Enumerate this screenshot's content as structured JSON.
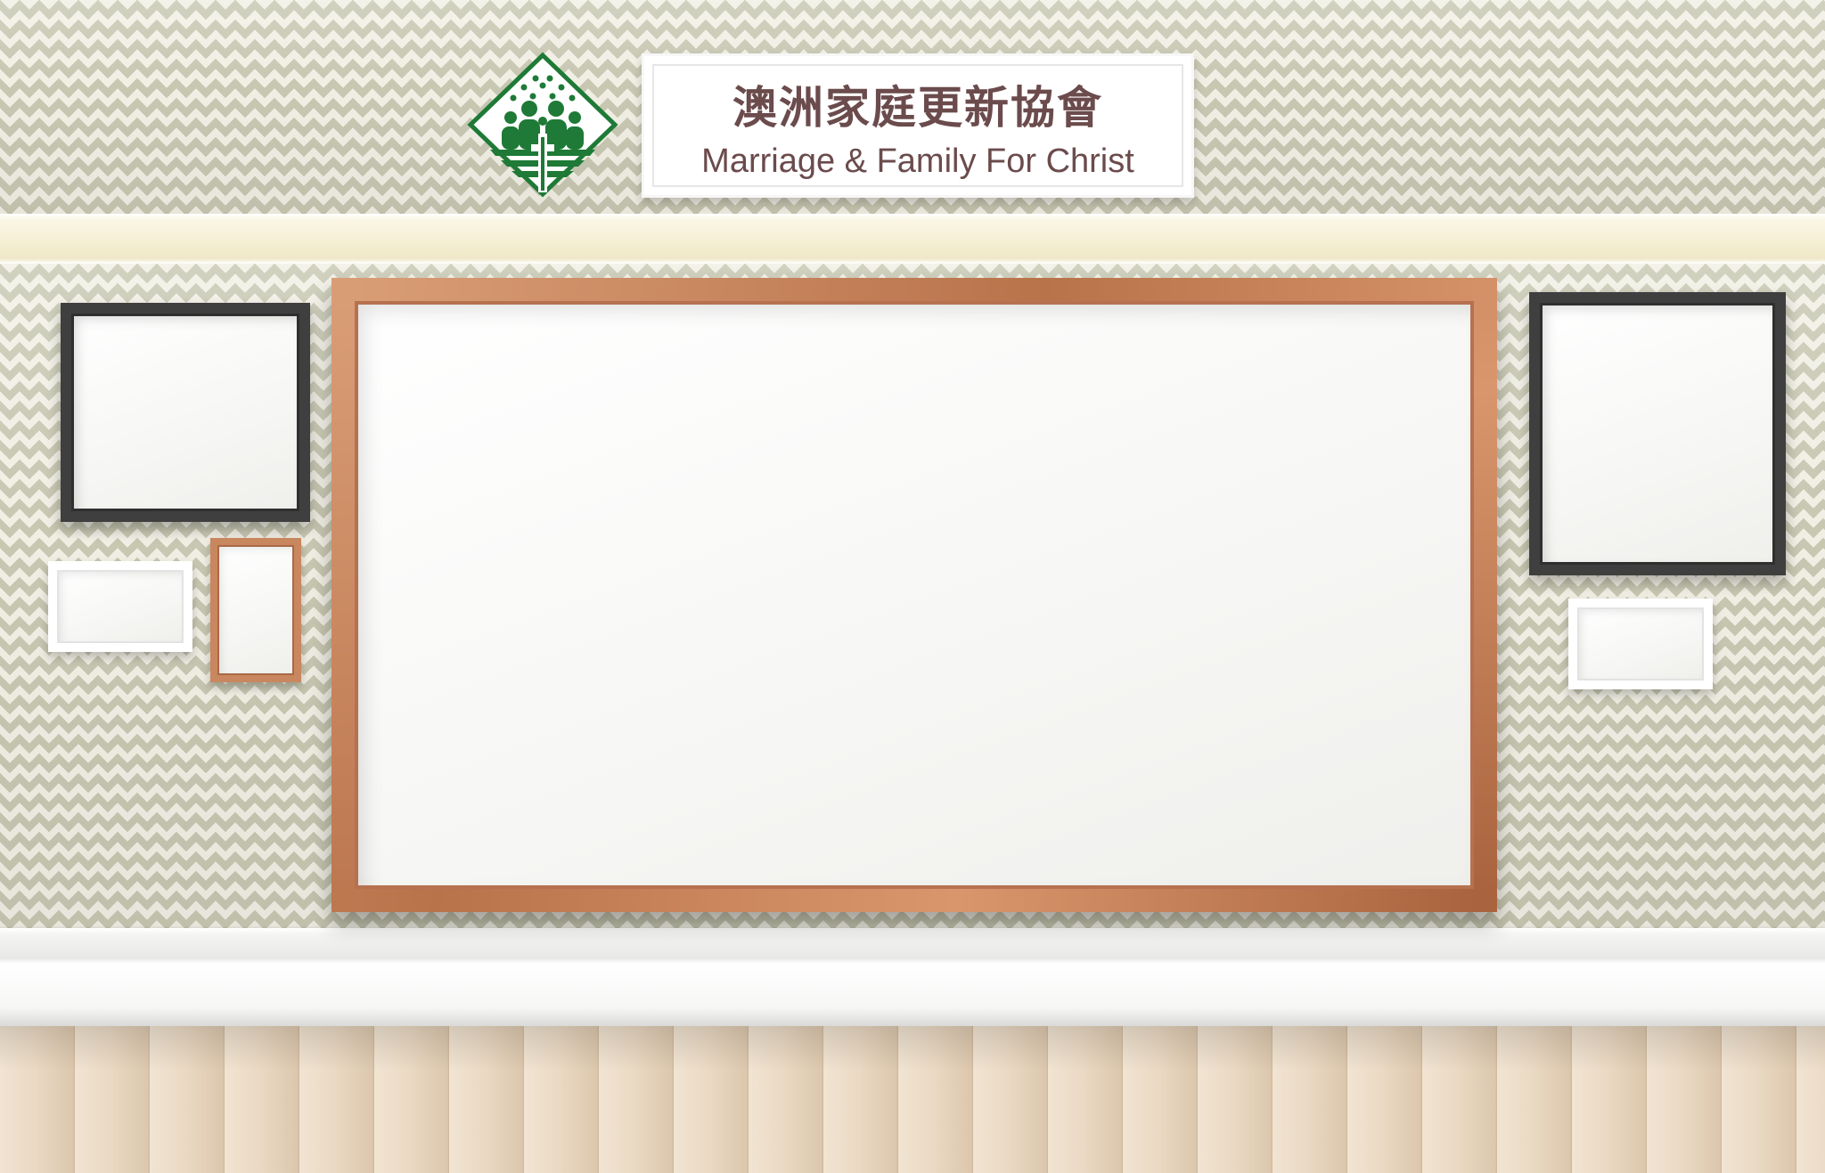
{
  "sign": {
    "title": "澳洲家庭更新協會",
    "subtitle": "Marriage & Family For Christ"
  },
  "colors": {
    "logo_green": "#1e7a36",
    "sign_text": "#6b4b4c",
    "wood_frame": "#c98a63",
    "dark_frame": "#3f3f3f",
    "wallpaper_light": "#f1efe4",
    "wallpaper_dark": "#c7c7b2"
  },
  "icons": {
    "logo": "family-cross-diamond-icon"
  }
}
